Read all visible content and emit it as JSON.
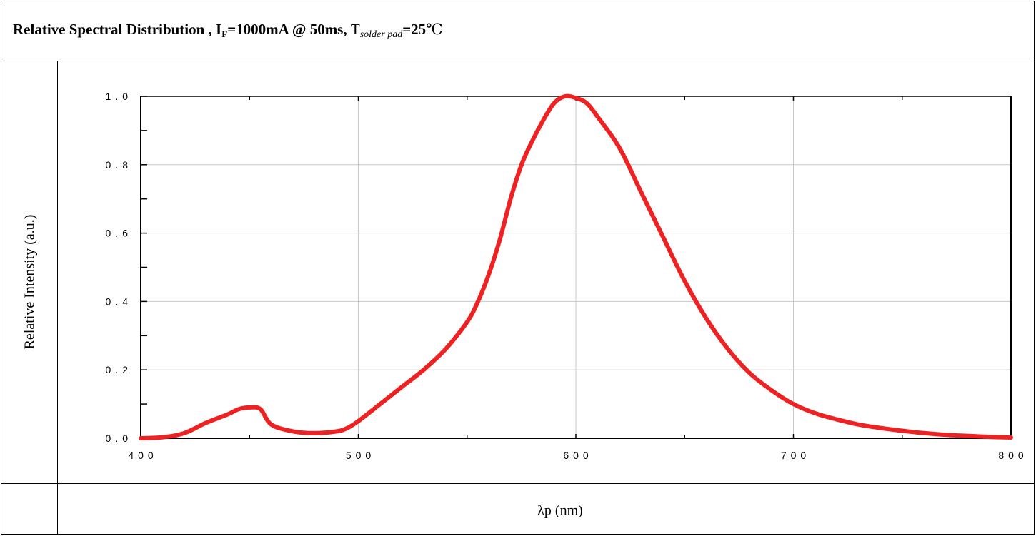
{
  "header": {
    "title_prefix": "Relative Spectral Distribution , I",
    "title_if_sub": "F",
    "title_mid": "=1000mA @ 50ms, ",
    "title_t": "T",
    "title_t_sub": "solder pad",
    "title_suffix": "=25",
    "title_unit": "℃"
  },
  "chart_data": {
    "type": "line",
    "xlabel": "λp (nm)",
    "ylabel": "Relative Intensity (a.u.)",
    "xlim": [
      400,
      800
    ],
    "ylim": [
      0,
      1.0
    ],
    "x_ticks": [
      "400",
      "500",
      "600",
      "700",
      "800"
    ],
    "y_ticks": [
      "0.0",
      "0.2",
      "0.4",
      "0.6",
      "0.8",
      "1.0"
    ],
    "grid": true,
    "line_color": "#ee2222",
    "series": [
      {
        "x": [
          400,
          410,
          420,
          430,
          440,
          445,
          450,
          455,
          460,
          470,
          480,
          490,
          495,
          500,
          510,
          520,
          530,
          540,
          550,
          555,
          560,
          565,
          570,
          575,
          580,
          585,
          590,
          595,
          600,
          605,
          610,
          620,
          630,
          640,
          650,
          660,
          670,
          680,
          690,
          700,
          710,
          720,
          730,
          740,
          750,
          760,
          770,
          780,
          790,
          800
        ],
        "y": [
          0.0,
          0.003,
          0.015,
          0.045,
          0.07,
          0.085,
          0.09,
          0.085,
          0.04,
          0.02,
          0.015,
          0.02,
          0.03,
          0.05,
          0.1,
          0.15,
          0.2,
          0.26,
          0.34,
          0.4,
          0.48,
          0.58,
          0.7,
          0.8,
          0.87,
          0.93,
          0.98,
          1.0,
          0.995,
          0.98,
          0.94,
          0.85,
          0.72,
          0.59,
          0.46,
          0.35,
          0.26,
          0.19,
          0.14,
          0.1,
          0.073,
          0.055,
          0.04,
          0.03,
          0.022,
          0.015,
          0.01,
          0.007,
          0.004,
          0.002
        ]
      }
    ]
  }
}
